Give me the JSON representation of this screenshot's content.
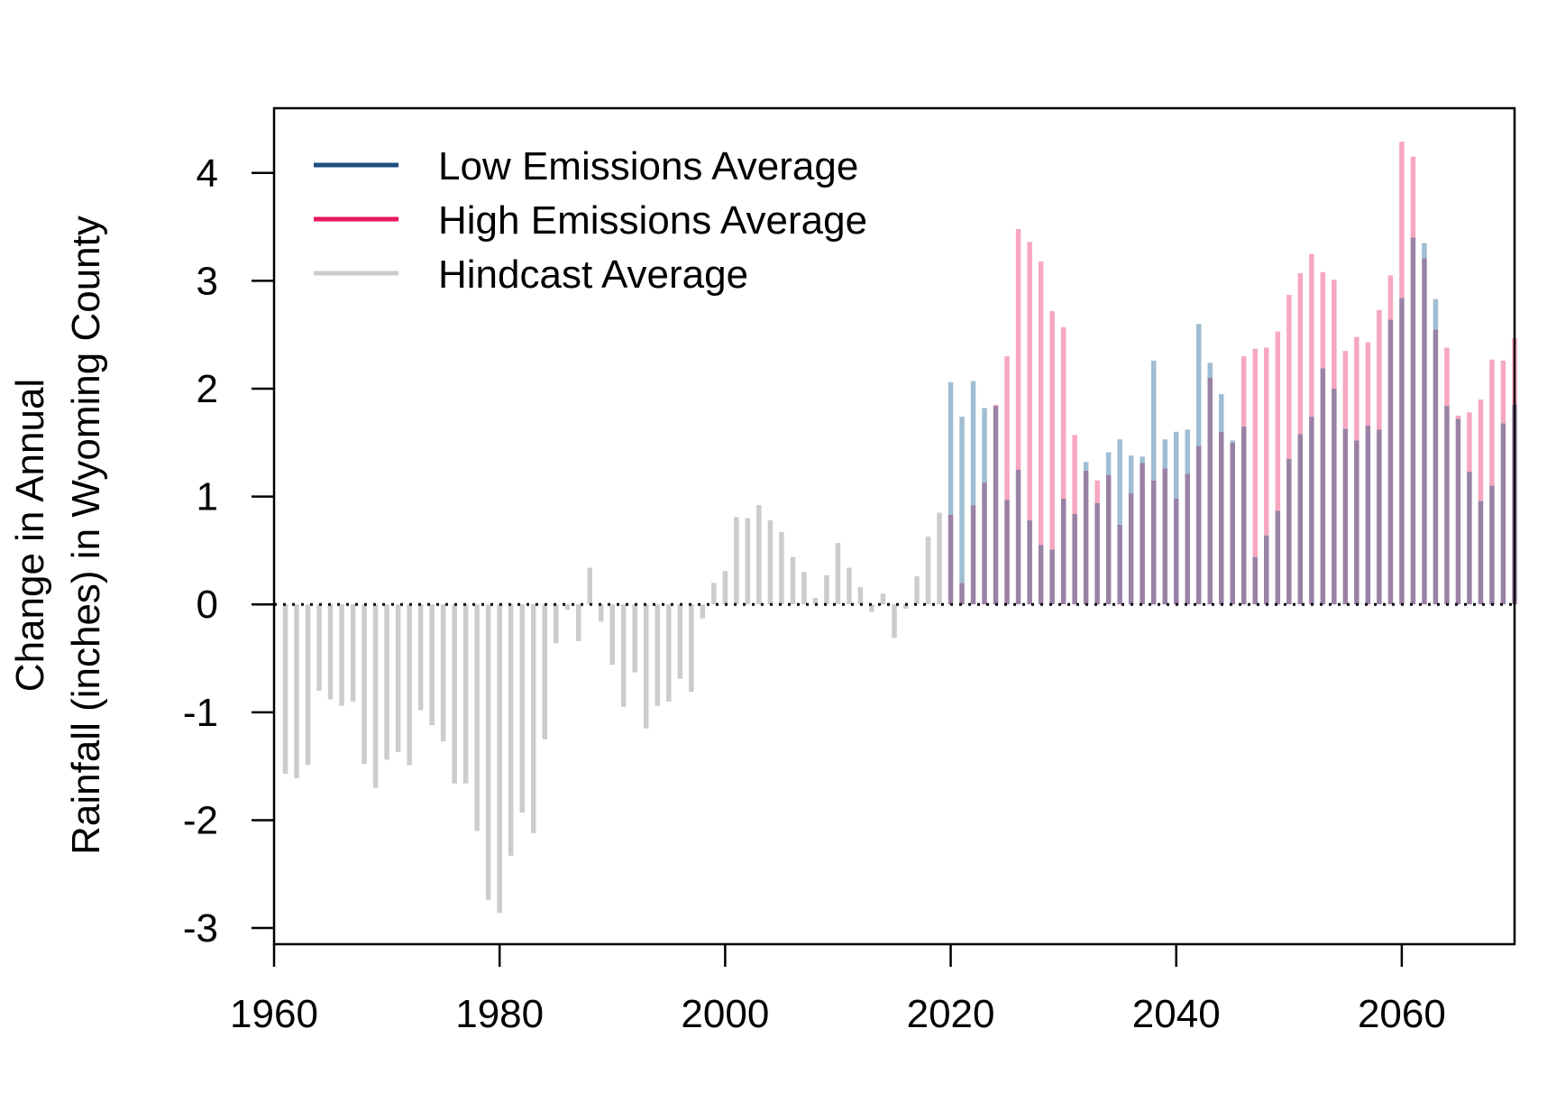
{
  "chart_data": {
    "type": "bar",
    "title": "",
    "xlabel": "",
    "ylabel_lines": [
      "Change in Annual",
      "Rainfall (inches) in Wyoming County"
    ],
    "xlim": [
      1960,
      2070
    ],
    "ylim": [
      -3.15,
      4.6
    ],
    "x_ticks": [
      1960,
      1980,
      2000,
      2020,
      2040,
      2060
    ],
    "y_ticks": [
      -3,
      -2,
      -1,
      0,
      1,
      2,
      3,
      4
    ],
    "grid": false,
    "legend_position": "top-left",
    "reference_line": 0,
    "colors": {
      "low": "#1b4f7e",
      "high": "#e8175d",
      "hindcast": "#cccccc",
      "low_bar": "#9fbdd3",
      "high_bar": "#f7a7bf",
      "overlap_bar": "#9a81a6"
    },
    "legend": [
      {
        "label": "Low Emissions Average",
        "color": "#1b4f7e"
      },
      {
        "label": "High Emissions Average",
        "color": "#e8175d"
      },
      {
        "label": "Hindcast Average",
        "color": "#cccccc"
      }
    ],
    "series": [
      {
        "name": "Hindcast Average",
        "x": [
          1961,
          1962,
          1963,
          1964,
          1965,
          1966,
          1967,
          1968,
          1969,
          1970,
          1971,
          1972,
          1973,
          1974,
          1975,
          1976,
          1977,
          1978,
          1979,
          1980,
          1981,
          1982,
          1983,
          1984,
          1985,
          1986,
          1987,
          1988,
          1989,
          1990,
          1991,
          1992,
          1993,
          1994,
          1995,
          1996,
          1997,
          1998,
          1999,
          2000,
          2001,
          2002,
          2003,
          2004,
          2005,
          2006,
          2007,
          2008,
          2009,
          2010,
          2011,
          2012,
          2013,
          2014,
          2015,
          2016,
          2017,
          2018,
          2019
        ],
        "values": [
          -1.57,
          -1.61,
          -1.49,
          -0.8,
          -0.88,
          -0.94,
          -0.9,
          -1.48,
          -1.7,
          -1.44,
          -1.37,
          -1.49,
          -0.98,
          -1.12,
          -1.27,
          -1.66,
          -1.66,
          -2.1,
          -2.74,
          -2.86,
          -2.33,
          -1.93,
          -2.12,
          -1.25,
          -0.36,
          -0.05,
          -0.34,
          0.34,
          -0.16,
          -0.56,
          -0.95,
          -0.63,
          -1.15,
          -0.94,
          -0.9,
          -0.69,
          -0.81,
          -0.13,
          0.2,
          0.31,
          0.81,
          0.8,
          0.92,
          0.78,
          0.67,
          0.44,
          0.3,
          0.06,
          0.27,
          0.57,
          0.34,
          0.16,
          -0.07,
          0.1,
          -0.31,
          -0.04,
          0.26,
          0.63,
          0.85
        ]
      },
      {
        "name": "Low Emissions Average",
        "x": [
          2020,
          2021,
          2022,
          2023,
          2024,
          2025,
          2026,
          2027,
          2028,
          2029,
          2030,
          2031,
          2032,
          2033,
          2034,
          2035,
          2036,
          2037,
          2038,
          2039,
          2040,
          2041,
          2042,
          2043,
          2044,
          2045,
          2046,
          2047,
          2048,
          2049,
          2050,
          2051,
          2052,
          2053,
          2054,
          2055,
          2056,
          2057,
          2058,
          2059,
          2060,
          2061,
          2062,
          2063,
          2064,
          2065,
          2066,
          2067,
          2068,
          2069,
          2070
        ],
        "values": [
          2.06,
          1.74,
          2.07,
          1.82,
          1.84,
          0.97,
          1.25,
          0.78,
          0.55,
          0.51,
          0.98,
          0.84,
          1.32,
          0.94,
          1.41,
          1.53,
          1.38,
          1.37,
          2.26,
          1.53,
          1.6,
          1.62,
          2.6,
          2.24,
          1.95,
          1.52,
          1.65,
          0.44,
          0.64,
          0.87,
          1.35,
          1.58,
          1.74,
          2.19,
          2.0,
          1.63,
          1.52,
          1.66,
          1.62,
          2.64,
          2.84,
          3.4,
          3.35,
          2.83,
          1.84,
          1.72,
          1.23,
          0.96,
          1.1,
          1.68,
          1.85
        ]
      },
      {
        "name": "High Emissions Average",
        "x": [
          2020,
          2021,
          2022,
          2023,
          2024,
          2025,
          2026,
          2027,
          2028,
          2029,
          2030,
          2031,
          2032,
          2033,
          2034,
          2035,
          2036,
          2037,
          2038,
          2039,
          2040,
          2041,
          2042,
          2043,
          2044,
          2045,
          2046,
          2047,
          2048,
          2049,
          2050,
          2051,
          2052,
          2053,
          2054,
          2055,
          2056,
          2057,
          2058,
          2059,
          2060,
          2061,
          2062,
          2063,
          2064,
          2065,
          2066,
          2067,
          2068,
          2069,
          2070
        ],
        "values": [
          0.83,
          0.2,
          0.92,
          1.13,
          1.85,
          2.3,
          3.48,
          3.36,
          3.18,
          2.72,
          2.57,
          1.57,
          1.24,
          1.15,
          1.2,
          0.74,
          1.03,
          1.31,
          1.15,
          1.26,
          0.98,
          1.21,
          1.47,
          2.1,
          1.6,
          1.5,
          2.3,
          2.37,
          2.38,
          2.53,
          2.87,
          3.07,
          3.25,
          3.08,
          3.01,
          2.35,
          2.48,
          2.43,
          2.73,
          3.05,
          4.29,
          4.15,
          3.21,
          2.55,
          2.38,
          1.75,
          1.78,
          1.9,
          2.27,
          2.26,
          2.47
        ]
      }
    ]
  }
}
